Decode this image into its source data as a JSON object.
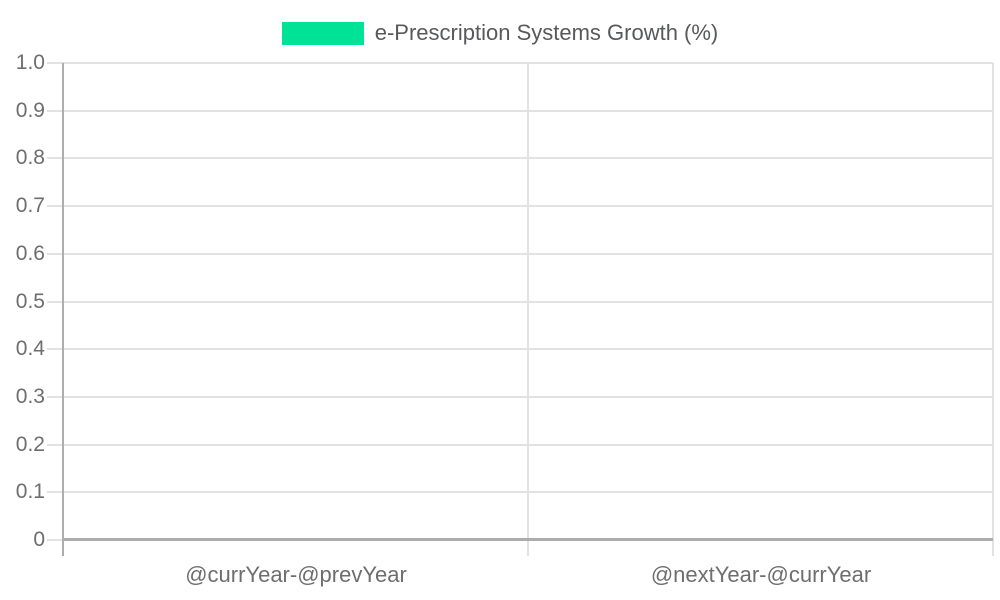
{
  "chart_data": {
    "type": "bar",
    "title": "",
    "categories": [
      "@currYear-@prevYear",
      "@nextYear-@currYear"
    ],
    "series": [
      {
        "name": "e-Prescription Systems Growth (%)",
        "color": "#00E396",
        "values": [
          0,
          0
        ]
      }
    ],
    "ylim": [
      0,
      1
    ],
    "ytick_labels_top_to_bottom": [
      "1.0",
      "0.9",
      "0.8",
      "0.7",
      "0.6",
      "0.5",
      "0.4",
      "0.3",
      "0.2",
      "0.1",
      "0"
    ],
    "grid": true,
    "legend_position": "top"
  },
  "colors": {
    "series": "#00E396",
    "gridline": "#e2e2e2",
    "axis_line": "#adadad",
    "tick_label": "#6e6e6e",
    "legend_text": "#58595b",
    "background": "#ffffff"
  }
}
